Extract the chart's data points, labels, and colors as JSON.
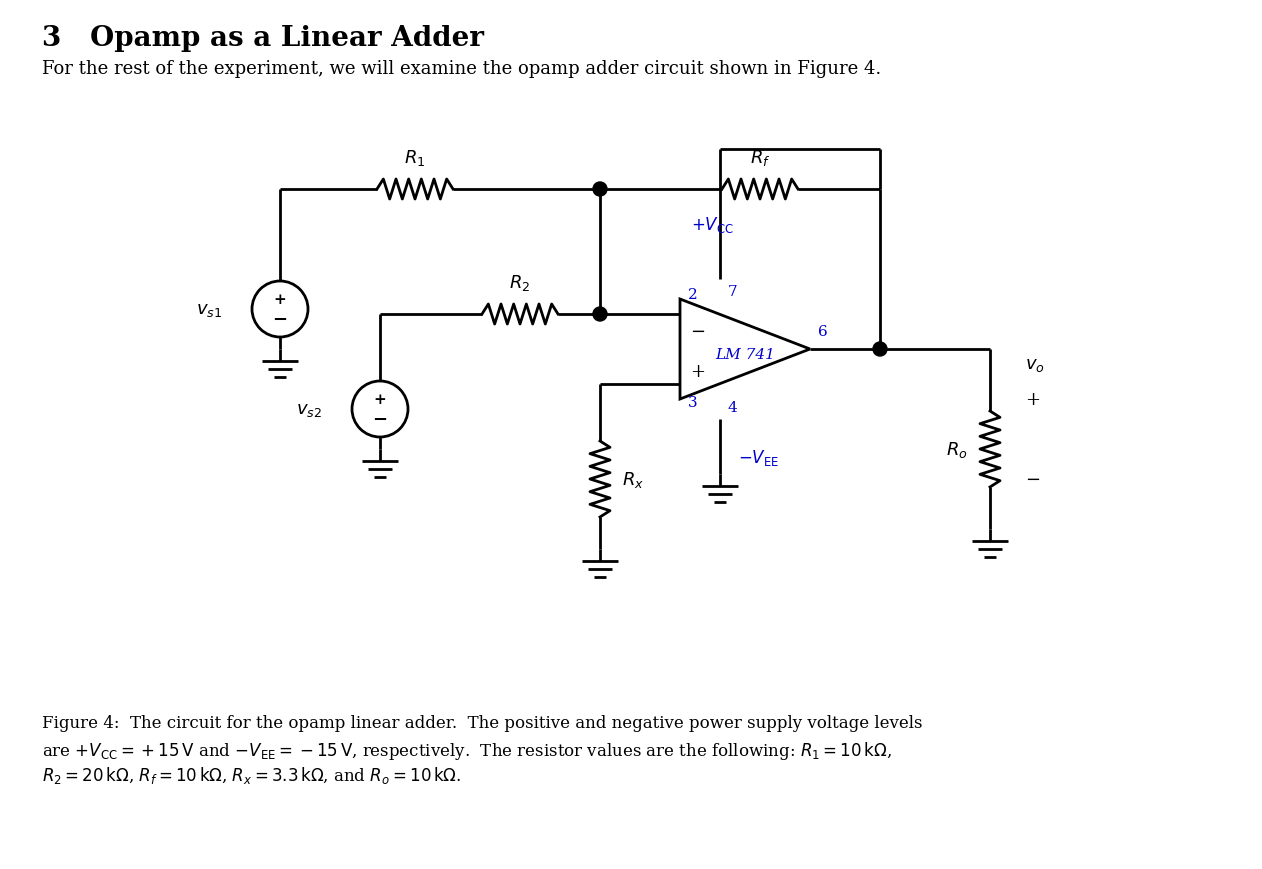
{
  "title": "3   Opamp as a Linear Adder",
  "subtitle": "For the rest of the experiment, we will examine the opamp adder circuit shown in Figure 4.",
  "bg_color": "#ffffff",
  "line_color": "#000000",
  "blue_color": "#0000cc"
}
